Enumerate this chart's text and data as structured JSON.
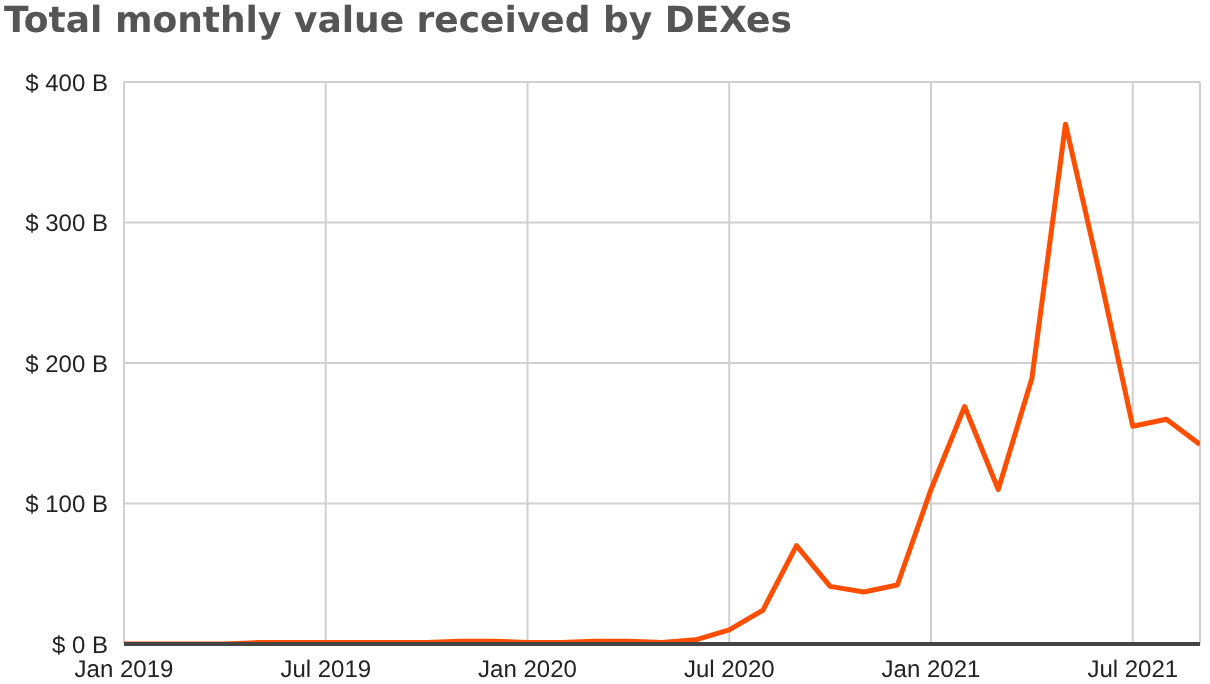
{
  "chart_data": {
    "type": "line",
    "title": "Total monthly value received by DEXes",
    "x": [
      "2019-01",
      "2019-02",
      "2019-03",
      "2019-04",
      "2019-05",
      "2019-06",
      "2019-07",
      "2019-08",
      "2019-09",
      "2019-10",
      "2019-11",
      "2019-12",
      "2020-01",
      "2020-02",
      "2020-03",
      "2020-04",
      "2020-05",
      "2020-06",
      "2020-07",
      "2020-08",
      "2020-09",
      "2020-10",
      "2020-11",
      "2020-12",
      "2021-01",
      "2021-02",
      "2021-03",
      "2021-04",
      "2021-05",
      "2021-06",
      "2021-07",
      "2021-08",
      "2021-09"
    ],
    "series": [
      {
        "color": "#ff4e00",
        "values": [
          0,
          0,
          0,
          0,
          1,
          1,
          1,
          1,
          1,
          1,
          2,
          2,
          1,
          1,
          2,
          2,
          1,
          3,
          10,
          24,
          70,
          41,
          37,
          42,
          110,
          169,
          110,
          189,
          370,
          265,
          155,
          160,
          142
        ]
      }
    ],
    "xlim": [
      "2019-01",
      "2021-09"
    ],
    "xticks": [
      {
        "value": "2019-01",
        "label": "Jan 2019"
      },
      {
        "value": "2019-07",
        "label": "Jul 2019"
      },
      {
        "value": "2020-01",
        "label": "Jan 2020"
      },
      {
        "value": "2020-07",
        "label": "Jul 2020"
      },
      {
        "value": "2021-01",
        "label": "Jan 2021"
      },
      {
        "value": "2021-07",
        "label": "Jul 2021"
      }
    ],
    "ylim": [
      0,
      400
    ],
    "yticks": [
      {
        "value": 0,
        "label": "$ 0 B"
      },
      {
        "value": 100,
        "label": "$ 100 B"
      },
      {
        "value": 200,
        "label": "$ 200 B"
      },
      {
        "value": 300,
        "label": "$ 300 B"
      },
      {
        "value": 400,
        "label": "$ 400 B"
      }
    ],
    "grid": true,
    "marker": "none",
    "line_style": "solid",
    "legend": false
  }
}
